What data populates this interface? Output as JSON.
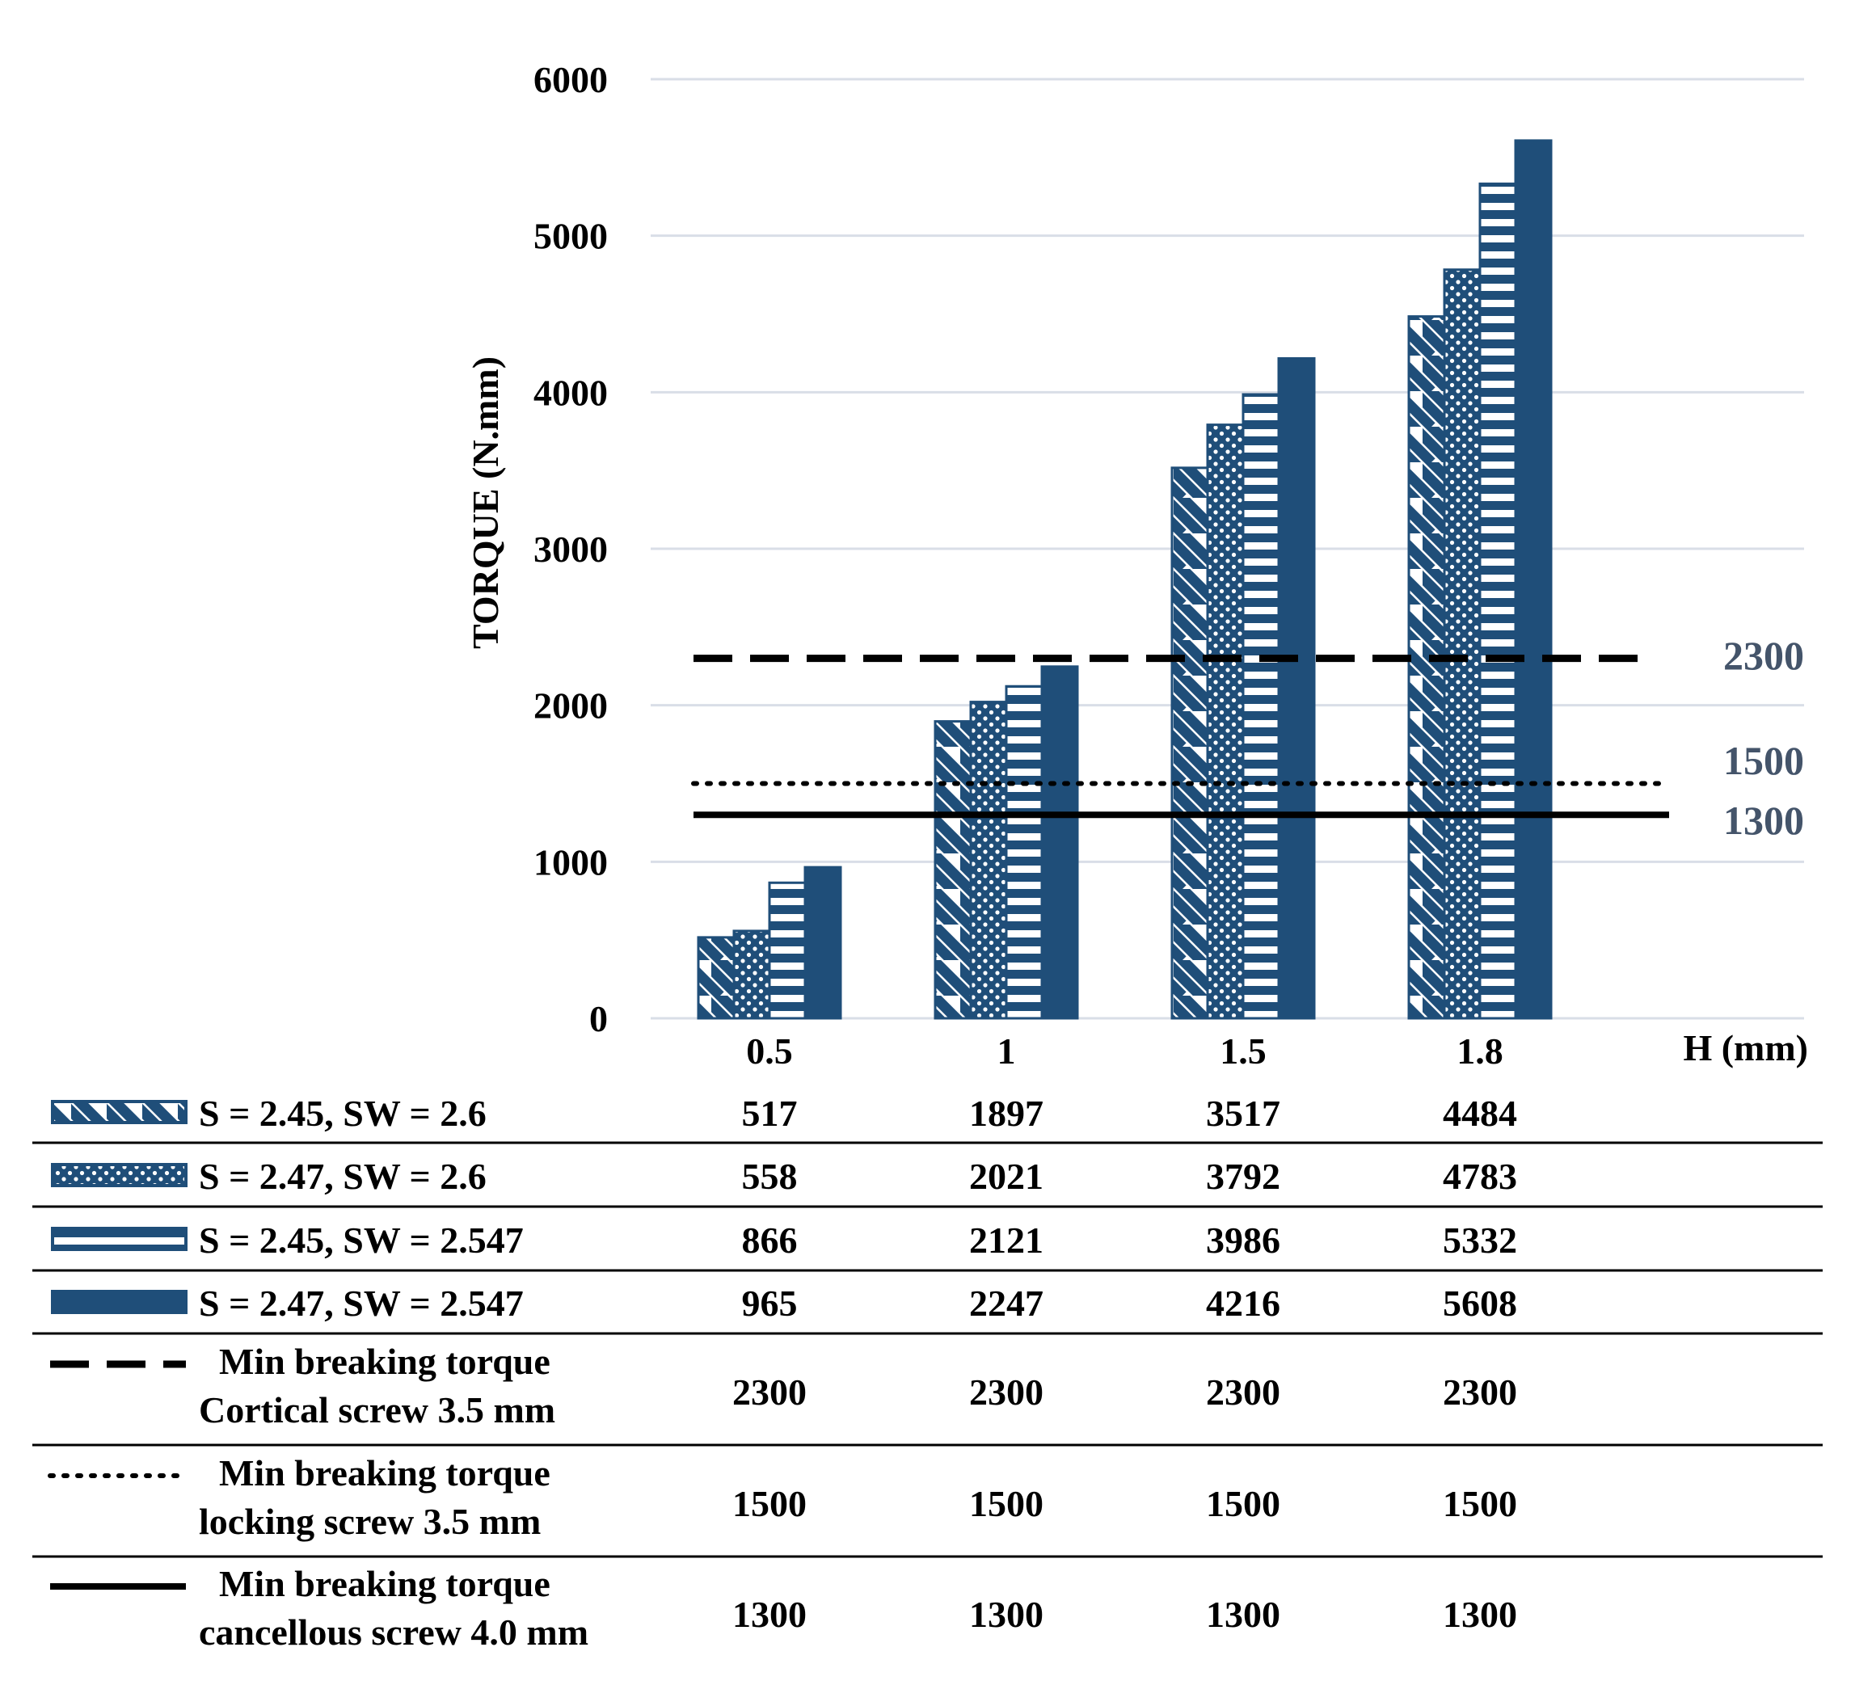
{
  "chart_data": {
    "type": "bar",
    "ylabel": "TORQUE  (N.mm)",
    "xlabel": "H (mm)",
    "categories": [
      "0.5",
      "1",
      "1.5",
      "1.8"
    ],
    "ylim": [
      0,
      6000
    ],
    "yticks": [
      0,
      1000,
      2000,
      3000,
      4000,
      5000,
      6000
    ],
    "grid": true,
    "bar_color": "#1F4E79",
    "series": [
      {
        "name": "S = 2.45, SW = 2.6",
        "pattern": "diagonal",
        "values": [
          517,
          1897,
          3517,
          4484
        ]
      },
      {
        "name": "S = 2.47, SW = 2.6",
        "pattern": "dotted",
        "values": [
          558,
          2021,
          3792,
          4783
        ]
      },
      {
        "name": "S = 2.45, SW = 2.547",
        "pattern": "horizontal",
        "values": [
          866,
          2121,
          3986,
          5332
        ]
      },
      {
        "name": "S = 2.47, SW = 2.547",
        "pattern": "solid",
        "values": [
          965,
          2247,
          4216,
          5608
        ]
      }
    ],
    "reference_lines": [
      {
        "name_lines": [
          "Min breaking torque",
          "Cortical screw 3.5 mm"
        ],
        "style": "dashed",
        "value": 2300,
        "label": "2300",
        "values": [
          2300,
          2300,
          2300,
          2300
        ]
      },
      {
        "name_lines": [
          "Min breaking torque",
          "locking screw 3.5 mm"
        ],
        "style": "dotted",
        "value": 1500,
        "label": "1500",
        "values": [
          1500,
          1500,
          1500,
          1500
        ]
      },
      {
        "name_lines": [
          "Min breaking torque",
          "cancellous screw 4.0 mm"
        ],
        "style": "solid",
        "value": 1300,
        "label": "1300",
        "values": [
          1300,
          1300,
          1300,
          1300
        ]
      }
    ]
  }
}
